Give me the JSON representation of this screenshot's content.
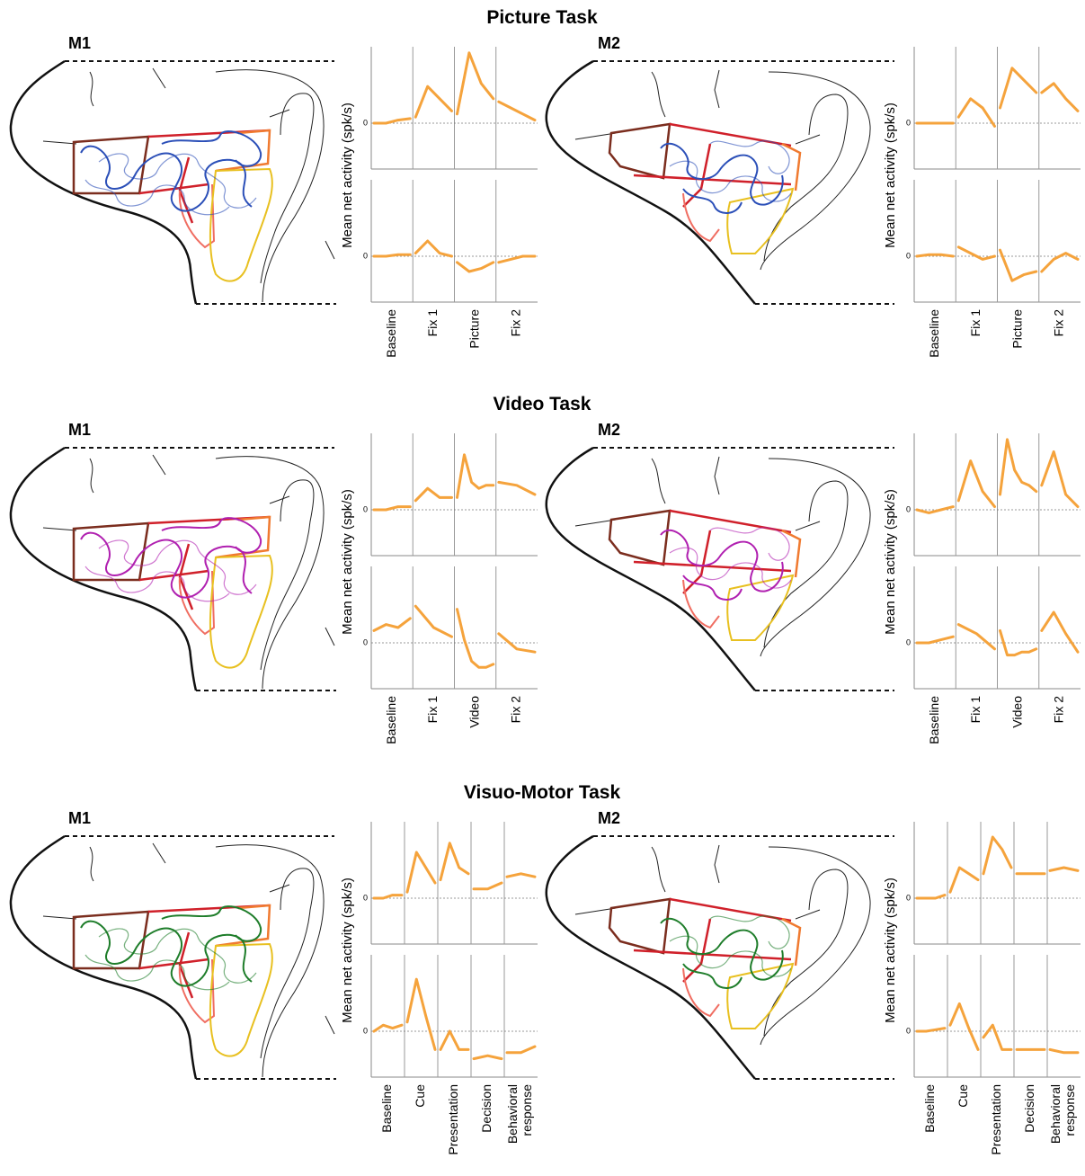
{
  "sections": [
    {
      "title": "Picture Task",
      "epochs": [
        [
          "Baseline"
        ],
        [
          "Fix 1"
        ],
        [
          "Picture"
        ],
        [
          "Fix 2"
        ]
      ],
      "panels": [
        {
          "monkey": "M1",
          "ylabel": "Mean net activity (spk/s)",
          "yticks": [
            0
          ],
          "ylim": [
            -1.5,
            2.5
          ],
          "color": "#f5a33c",
          "top": [
            [
              0,
              0,
              0.1,
              0.15
            ],
            [
              0.2,
              1.2,
              0.8,
              0.4
            ],
            [
              0.3,
              2.3,
              1.3,
              0.8
            ],
            [
              0.7,
              0.5,
              0.3,
              0.1
            ]
          ],
          "bottom": [
            [
              0,
              0,
              0.05,
              0.05
            ],
            [
              0.1,
              0.5,
              0.1,
              0
            ],
            [
              -0.2,
              -0.5,
              -0.4,
              -0.2
            ],
            [
              -0.2,
              -0.1,
              0,
              0
            ]
          ]
        },
        {
          "monkey": "M2",
          "ylabel": "Mean net activity (spk/s)",
          "yticks": [
            0
          ],
          "ylim": [
            -1.5,
            2.5
          ],
          "color": "#f5a33c",
          "top": [
            [
              0,
              0,
              0,
              0
            ],
            [
              0.2,
              0.8,
              0.5,
              -0.1
            ],
            [
              0.5,
              1.8,
              1.4,
              1.0
            ],
            [
              1.0,
              1.3,
              0.8,
              0.4
            ]
          ],
          "bottom": [
            [
              0,
              0.05,
              0.05,
              0
            ],
            [
              0.3,
              0.1,
              -0.1,
              0
            ],
            [
              0.2,
              -0.8,
              -0.6,
              -0.5
            ],
            [
              -0.5,
              -0.1,
              0.1,
              -0.1
            ]
          ]
        }
      ]
    },
    {
      "title": "Video Task",
      "epochs": [
        [
          "Baseline"
        ],
        [
          "Fix 1"
        ],
        [
          "Video"
        ],
        [
          "Fix 2"
        ]
      ],
      "panels": [
        {
          "monkey": "M1",
          "ylabel": "Mean net activity (spk/s)",
          "yticks": [
            0
          ],
          "ylim": [
            -1.5,
            2.5
          ],
          "color": "#f5a33c",
          "top": [
            [
              0,
              0,
              0.1,
              0.1
            ],
            [
              0.3,
              0.7,
              0.4,
              0.4
            ],
            [
              0.4,
              1.8,
              0.9,
              0.7,
              0.8,
              0.8
            ],
            [
              0.9,
              0.8,
              0.5
            ]
          ],
          "bottom": [
            [
              0.4,
              0.6,
              0.5,
              0.8
            ],
            [
              1.2,
              0.5,
              0.2
            ],
            [
              1.1,
              0.1,
              -0.6,
              -0.8,
              -0.8,
              -0.7
            ],
            [
              0.3,
              -0.2,
              -0.3
            ]
          ]
        },
        {
          "monkey": "M2",
          "ylabel": "Mean net activity (spk/s)",
          "yticks": [
            0
          ],
          "ylim": [
            -1.5,
            2.5
          ],
          "color": "#f5a33c",
          "top": [
            [
              0,
              -0.1,
              0,
              0.1
            ],
            [
              0.3,
              1.6,
              0.6,
              0.1
            ],
            [
              0.5,
              2.3,
              1.3,
              0.9,
              0.8,
              0.6
            ],
            [
              0.8,
              1.9,
              0.5,
              0.1
            ]
          ],
          "bottom": [
            [
              0,
              0,
              0.1,
              0.2
            ],
            [
              0.6,
              0.3,
              -0.2
            ],
            [
              0.4,
              -0.4,
              -0.4,
              -0.3,
              -0.3,
              -0.2
            ],
            [
              0.4,
              1.0,
              0.3,
              -0.3
            ]
          ]
        }
      ]
    },
    {
      "title": "Visuo-Motor Task",
      "epochs": [
        [
          "Baseline"
        ],
        [
          "Cue"
        ],
        [
          "Presentation"
        ],
        [
          "Decision"
        ],
        [
          "Behavioral",
          "response"
        ]
      ],
      "panels": [
        {
          "monkey": "M1",
          "ylabel": "Mean net activity (spk/s)",
          "yticks": [
            0
          ],
          "ylim": [
            -1.5,
            2.5
          ],
          "color": "#f5a33c",
          "top": [
            [
              0,
              0,
              0.1,
              0.1
            ],
            [
              0.2,
              1.5,
              1.0,
              0.5
            ],
            [
              0.6,
              1.8,
              1.0,
              0.8
            ],
            [
              0.3,
              0.3,
              0.5
            ],
            [
              0.7,
              0.8,
              0.7
            ]
          ],
          "bottom": [
            [
              0,
              0.2,
              0.1,
              0.2
            ],
            [
              0.3,
              1.7,
              0.5,
              -0.6
            ],
            [
              -0.6,
              0,
              -0.6,
              -0.6
            ],
            [
              -0.9,
              -0.8,
              -0.9
            ],
            [
              -0.7,
              -0.7,
              -0.5
            ]
          ]
        },
        {
          "monkey": "M2",
          "ylabel": "Mean net activity (spk/s)",
          "yticks": [
            0
          ],
          "ylim": [
            -1.5,
            2.5
          ],
          "color": "#f5a33c",
          "top": [
            [
              0,
              0,
              0,
              0.1
            ],
            [
              0.2,
              1.0,
              0.8,
              0.6
            ],
            [
              0.8,
              2.0,
              1.6,
              1.0
            ],
            [
              0.8,
              0.8,
              0.8
            ],
            [
              0.9,
              1.0,
              0.9
            ]
          ],
          "bottom": [
            [
              0,
              0,
              0.05,
              0.1
            ],
            [
              0.2,
              0.9,
              0.1,
              -0.6
            ],
            [
              -0.2,
              0.2,
              -0.6,
              -0.6
            ],
            [
              -0.6,
              -0.6,
              -0.6
            ],
            [
              -0.6,
              -0.7,
              -0.7
            ]
          ]
        }
      ]
    }
  ]
}
